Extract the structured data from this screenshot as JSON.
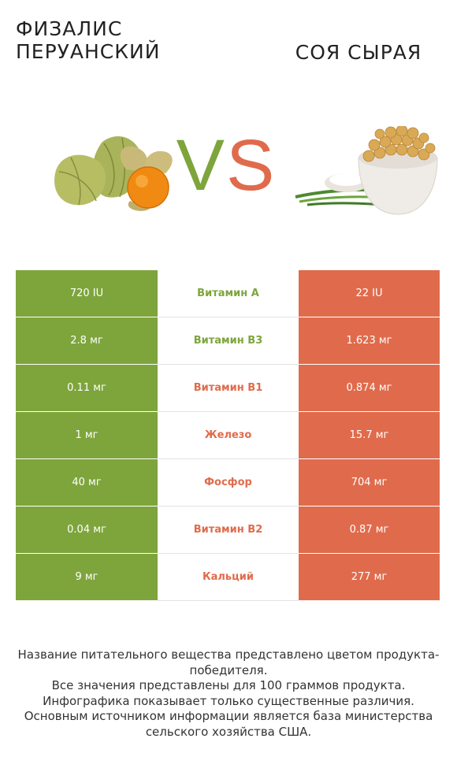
{
  "left_product": {
    "name": "Физалис перуанский",
    "color": "#7ea53c",
    "image": "physalis-fruit-image"
  },
  "right_product": {
    "name": "Соя сырая",
    "color": "#e06b4c",
    "image": "soybeans-bowl-image"
  },
  "vs": {
    "v": "V",
    "s": "S"
  },
  "rows": [
    {
      "left": "720 IU",
      "nutrient": "Витамин A",
      "right": "22 IU",
      "winner": "left"
    },
    {
      "left": "2.8 мг",
      "nutrient": "Витамин B3",
      "right": "1.623 мг",
      "winner": "left"
    },
    {
      "left": "0.11 мг",
      "nutrient": "Витамин B1",
      "right": "0.874 мг",
      "winner": "right"
    },
    {
      "left": "1 мг",
      "nutrient": "Железо",
      "right": "15.7 мг",
      "winner": "right"
    },
    {
      "left": "40 мг",
      "nutrient": "Фосфор",
      "right": "704 мг",
      "winner": "right"
    },
    {
      "left": "0.04 мг",
      "nutrient": "Витамин B2",
      "right": "0.87 мг",
      "winner": "right"
    },
    {
      "left": "9 мг",
      "nutrient": "Кальций",
      "right": "277 мг",
      "winner": "right"
    }
  ],
  "footer": {
    "line1": "Название питательного вещества представлено цветом продукта-победителя.",
    "line2": "Все значения представлены для 100 граммов продукта.",
    "line3": "Инфографика показывает только существенные различия.",
    "line4": "Основным источником информации является база министерства сельского хозяйства США."
  }
}
